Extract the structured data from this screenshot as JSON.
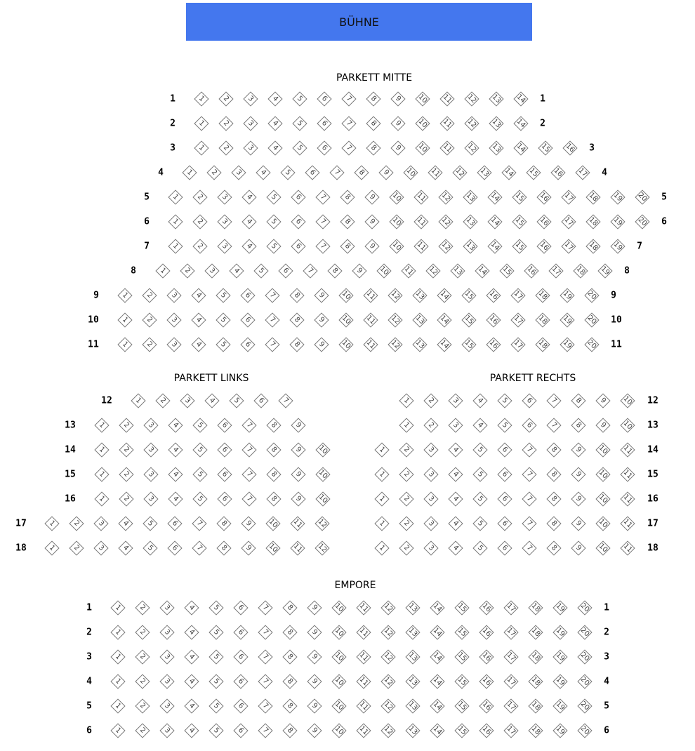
{
  "stage": {
    "label": "BÜHNE",
    "color": "#4477ee"
  },
  "sections": [
    {
      "id": "parkett-mitte",
      "title": "PARKETT MITTE",
      "labels": "both",
      "rows": [
        {
          "label": "1",
          "seats": 14
        },
        {
          "label": "2",
          "seats": 14
        },
        {
          "label": "3",
          "seats": 16
        },
        {
          "label": "4",
          "seats": 17
        },
        {
          "label": "5",
          "seats": 20
        },
        {
          "label": "6",
          "seats": 20
        },
        {
          "label": "7",
          "seats": 19
        },
        {
          "label": "8",
          "seats": 19
        },
        {
          "label": "9",
          "seats": 20
        },
        {
          "label": "10",
          "seats": 20
        },
        {
          "label": "11",
          "seats": 20
        }
      ]
    },
    {
      "id": "parkett-links",
      "title": "PARKETT LINKS",
      "labels": "left",
      "rows": [
        {
          "label": "12",
          "seats": 7
        },
        {
          "label": "13",
          "seats": 9
        },
        {
          "label": "14",
          "seats": 10
        },
        {
          "label": "15",
          "seats": 10
        },
        {
          "label": "16",
          "seats": 10
        },
        {
          "label": "17",
          "seats": 12
        },
        {
          "label": "18",
          "seats": 12
        }
      ]
    },
    {
      "id": "parkett-rechts",
      "title": "PARKETT RECHTS",
      "labels": "right",
      "rows": [
        {
          "label": "12",
          "seats": 10
        },
        {
          "label": "13",
          "seats": 10
        },
        {
          "label": "14",
          "seats": 11
        },
        {
          "label": "15",
          "seats": 11
        },
        {
          "label": "16",
          "seats": 11
        },
        {
          "label": "17",
          "seats": 11
        },
        {
          "label": "18",
          "seats": 11
        }
      ]
    },
    {
      "id": "empore",
      "title": "EMPORE",
      "labels": "both",
      "rows": [
        {
          "label": "1",
          "seats": 20
        },
        {
          "label": "2",
          "seats": 20
        },
        {
          "label": "3",
          "seats": 20
        },
        {
          "label": "4",
          "seats": 20
        },
        {
          "label": "5",
          "seats": 20
        },
        {
          "label": "6",
          "seats": 20
        }
      ]
    }
  ]
}
